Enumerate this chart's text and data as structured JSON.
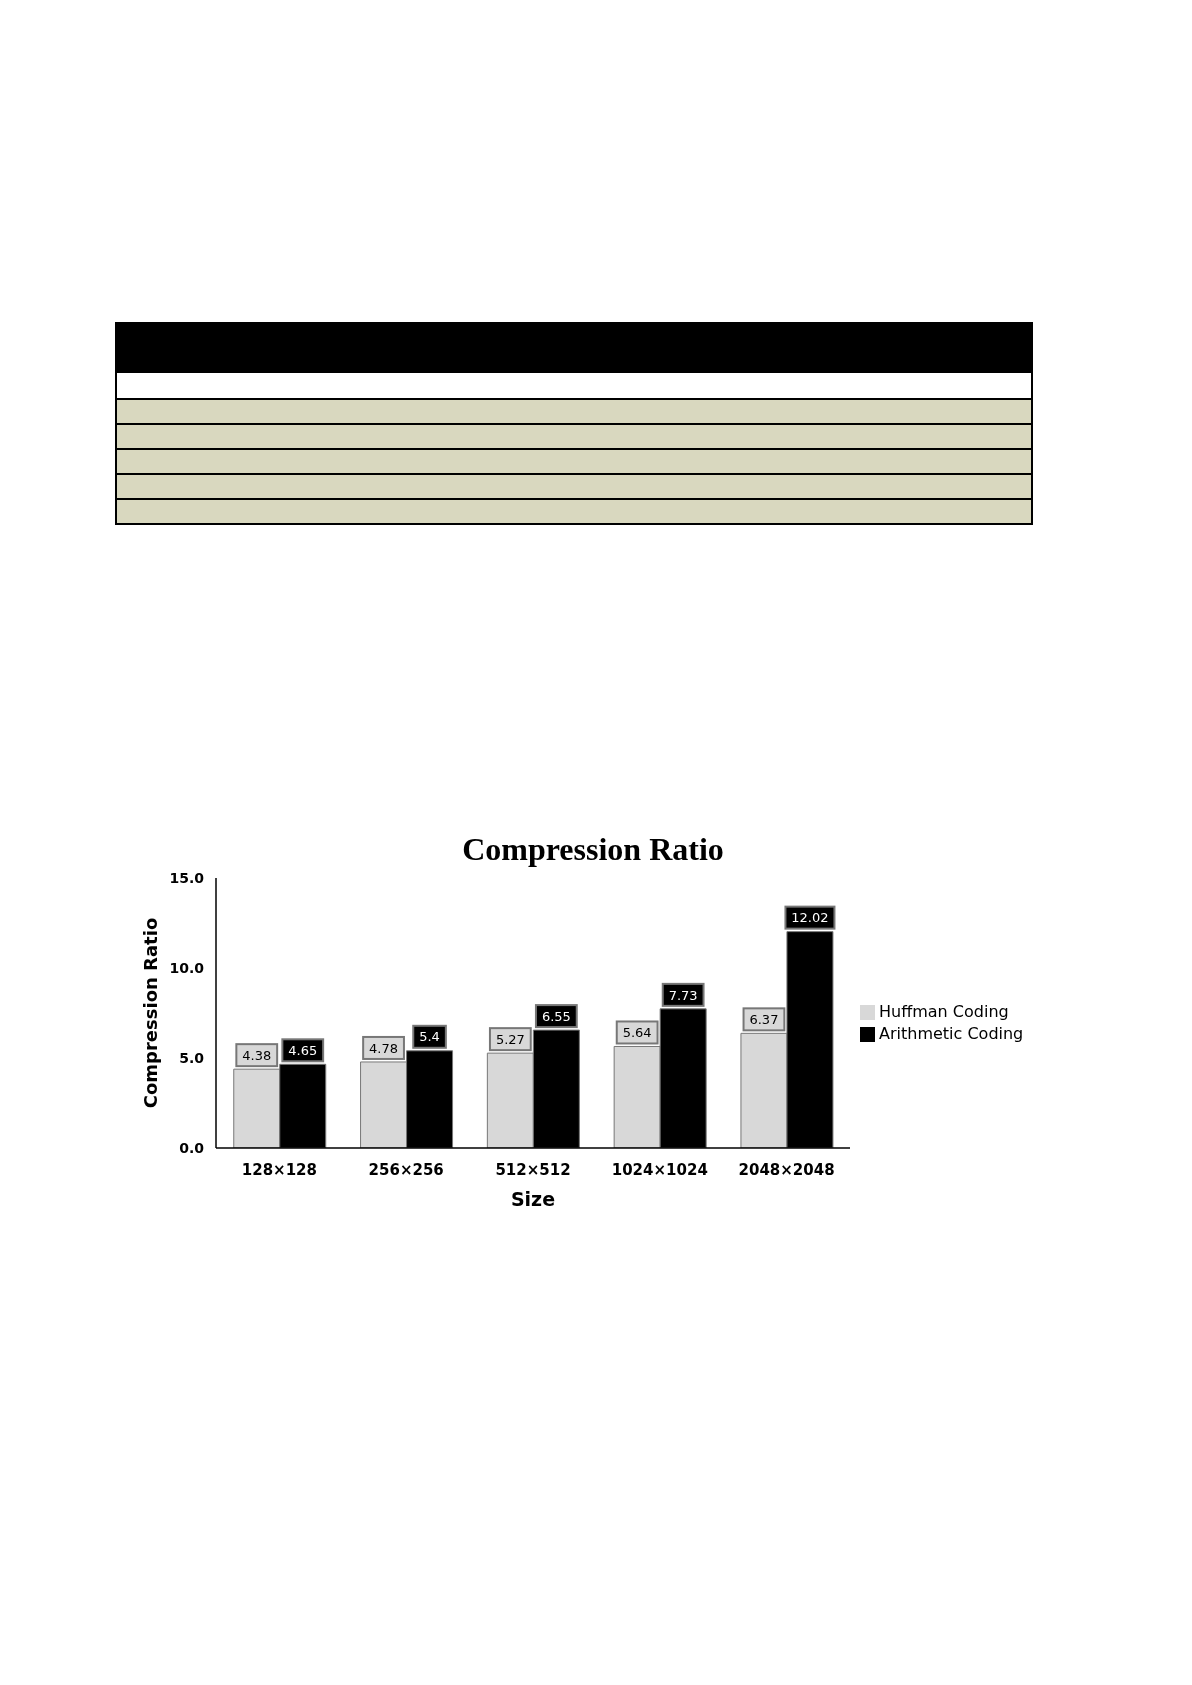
{
  "chart_data": {
    "type": "bar",
    "title": "Compression Ratio",
    "xlabel": "Size",
    "ylabel": "Compression Ratio",
    "categories": [
      "128×128",
      "256×256",
      "512×512",
      "1024×1024",
      "2048×2048"
    ],
    "series": [
      {
        "name": "Huffman Coding",
        "color": "#d8d8d8",
        "values": [
          4.38,
          4.78,
          5.27,
          5.64,
          6.37
        ]
      },
      {
        "name": "Arithmetic Coding",
        "color": "#000000",
        "values": [
          4.65,
          5.4,
          6.55,
          7.73,
          12.02
        ]
      }
    ],
    "ylim": [
      0,
      15
    ],
    "yticks": [
      {
        "value": 0,
        "label": "0.0"
      },
      {
        "value": 5,
        "label": "5.0"
      },
      {
        "value": 10,
        "label": "10.0"
      },
      {
        "value": 15,
        "label": "15.0"
      }
    ],
    "legend": "right",
    "data_labels": true
  }
}
